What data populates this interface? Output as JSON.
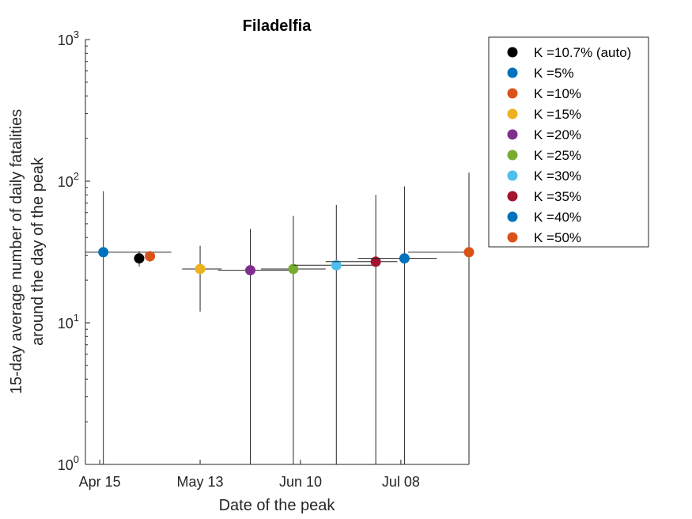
{
  "chart_data": {
    "type": "scatter",
    "title": "Filadelfia",
    "xlabel": "Date of the peak",
    "ylabel_lines": [
      "15-day average number of daily fatalities",
      "around the day of the peak"
    ],
    "yscale": "log",
    "ylim": [
      1,
      1000
    ],
    "xlim": [
      "2020-04-11",
      "2020-07-27"
    ],
    "x_ticks": [
      {
        "date": "2020-04-15",
        "label": "Apr 15"
      },
      {
        "date": "2020-05-13",
        "label": "May 13"
      },
      {
        "date": "2020-06-10",
        "label": "Jun 10"
      },
      {
        "date": "2020-07-08",
        "label": "Jul 08"
      }
    ],
    "y_ticks": [
      {
        "value": 1,
        "base": "10",
        "exp": "0"
      },
      {
        "value": 10,
        "base": "10",
        "exp": "1"
      },
      {
        "value": 100,
        "base": "10",
        "exp": "2"
      },
      {
        "value": 1000,
        "base": "10",
        "exp": "3"
      }
    ],
    "grid": false,
    "legend_position": "outside-top-right",
    "series": [
      {
        "name": "K =10.7% (auto)",
        "color": "#000000",
        "x": "2020-04-26",
        "y": 28.5,
        "x_err": [
          "2020-04-26",
          "2020-04-27"
        ],
        "y_err": [
          25,
          32
        ]
      },
      {
        "name": "K =5%",
        "color": "#0072BD",
        "x": "2020-04-16",
        "y": 31.5,
        "x_err": [
          "2020-04-11",
          "2020-05-05"
        ],
        "y_err": [
          1,
          85
        ]
      },
      {
        "name": "K =10%",
        "color": "#D95319",
        "x": "2020-04-29",
        "y": 29.5,
        "x_err": [
          "2020-04-28",
          "2020-04-30"
        ],
        "y_err": [
          27,
          32
        ]
      },
      {
        "name": "K =15%",
        "color": "#EDB120",
        "x": "2020-05-13",
        "y": 24,
        "x_err": [
          "2020-05-08",
          "2020-05-19"
        ],
        "y_err": [
          12,
          35
        ]
      },
      {
        "name": "K =20%",
        "color": "#7E2F8E",
        "x": "2020-05-27",
        "y": 23.5,
        "x_err": [
          "2020-05-18",
          "2020-06-08"
        ],
        "y_err": [
          1,
          46
        ]
      },
      {
        "name": "K =25%",
        "color": "#77AC30",
        "x": "2020-06-08",
        "y": 24,
        "x_err": [
          "2020-05-30",
          "2020-06-17"
        ],
        "y_err": [
          1,
          57
        ]
      },
      {
        "name": "K =30%",
        "color": "#4DBEEE",
        "x": "2020-06-20",
        "y": 25.5,
        "x_err": [
          "2020-06-08",
          "2020-07-01"
        ],
        "y_err": [
          1,
          68
        ]
      },
      {
        "name": "K =35%",
        "color": "#A2142F",
        "x": "2020-07-01",
        "y": 27,
        "x_err": [
          "2020-06-17",
          "2020-07-07"
        ],
        "y_err": [
          1,
          80
        ]
      },
      {
        "name": "K =40%",
        "color": "#0072BD",
        "x": "2020-07-09",
        "y": 28.5,
        "x_err": [
          "2020-06-26",
          "2020-07-18"
        ],
        "y_err": [
          1,
          92
        ]
      },
      {
        "name": "K =50%",
        "color": "#D95319",
        "x": "2020-07-27",
        "y": 31.5,
        "x_err": [
          "2020-07-10",
          "2020-07-27"
        ],
        "y_err": [
          1,
          115
        ]
      }
    ]
  }
}
